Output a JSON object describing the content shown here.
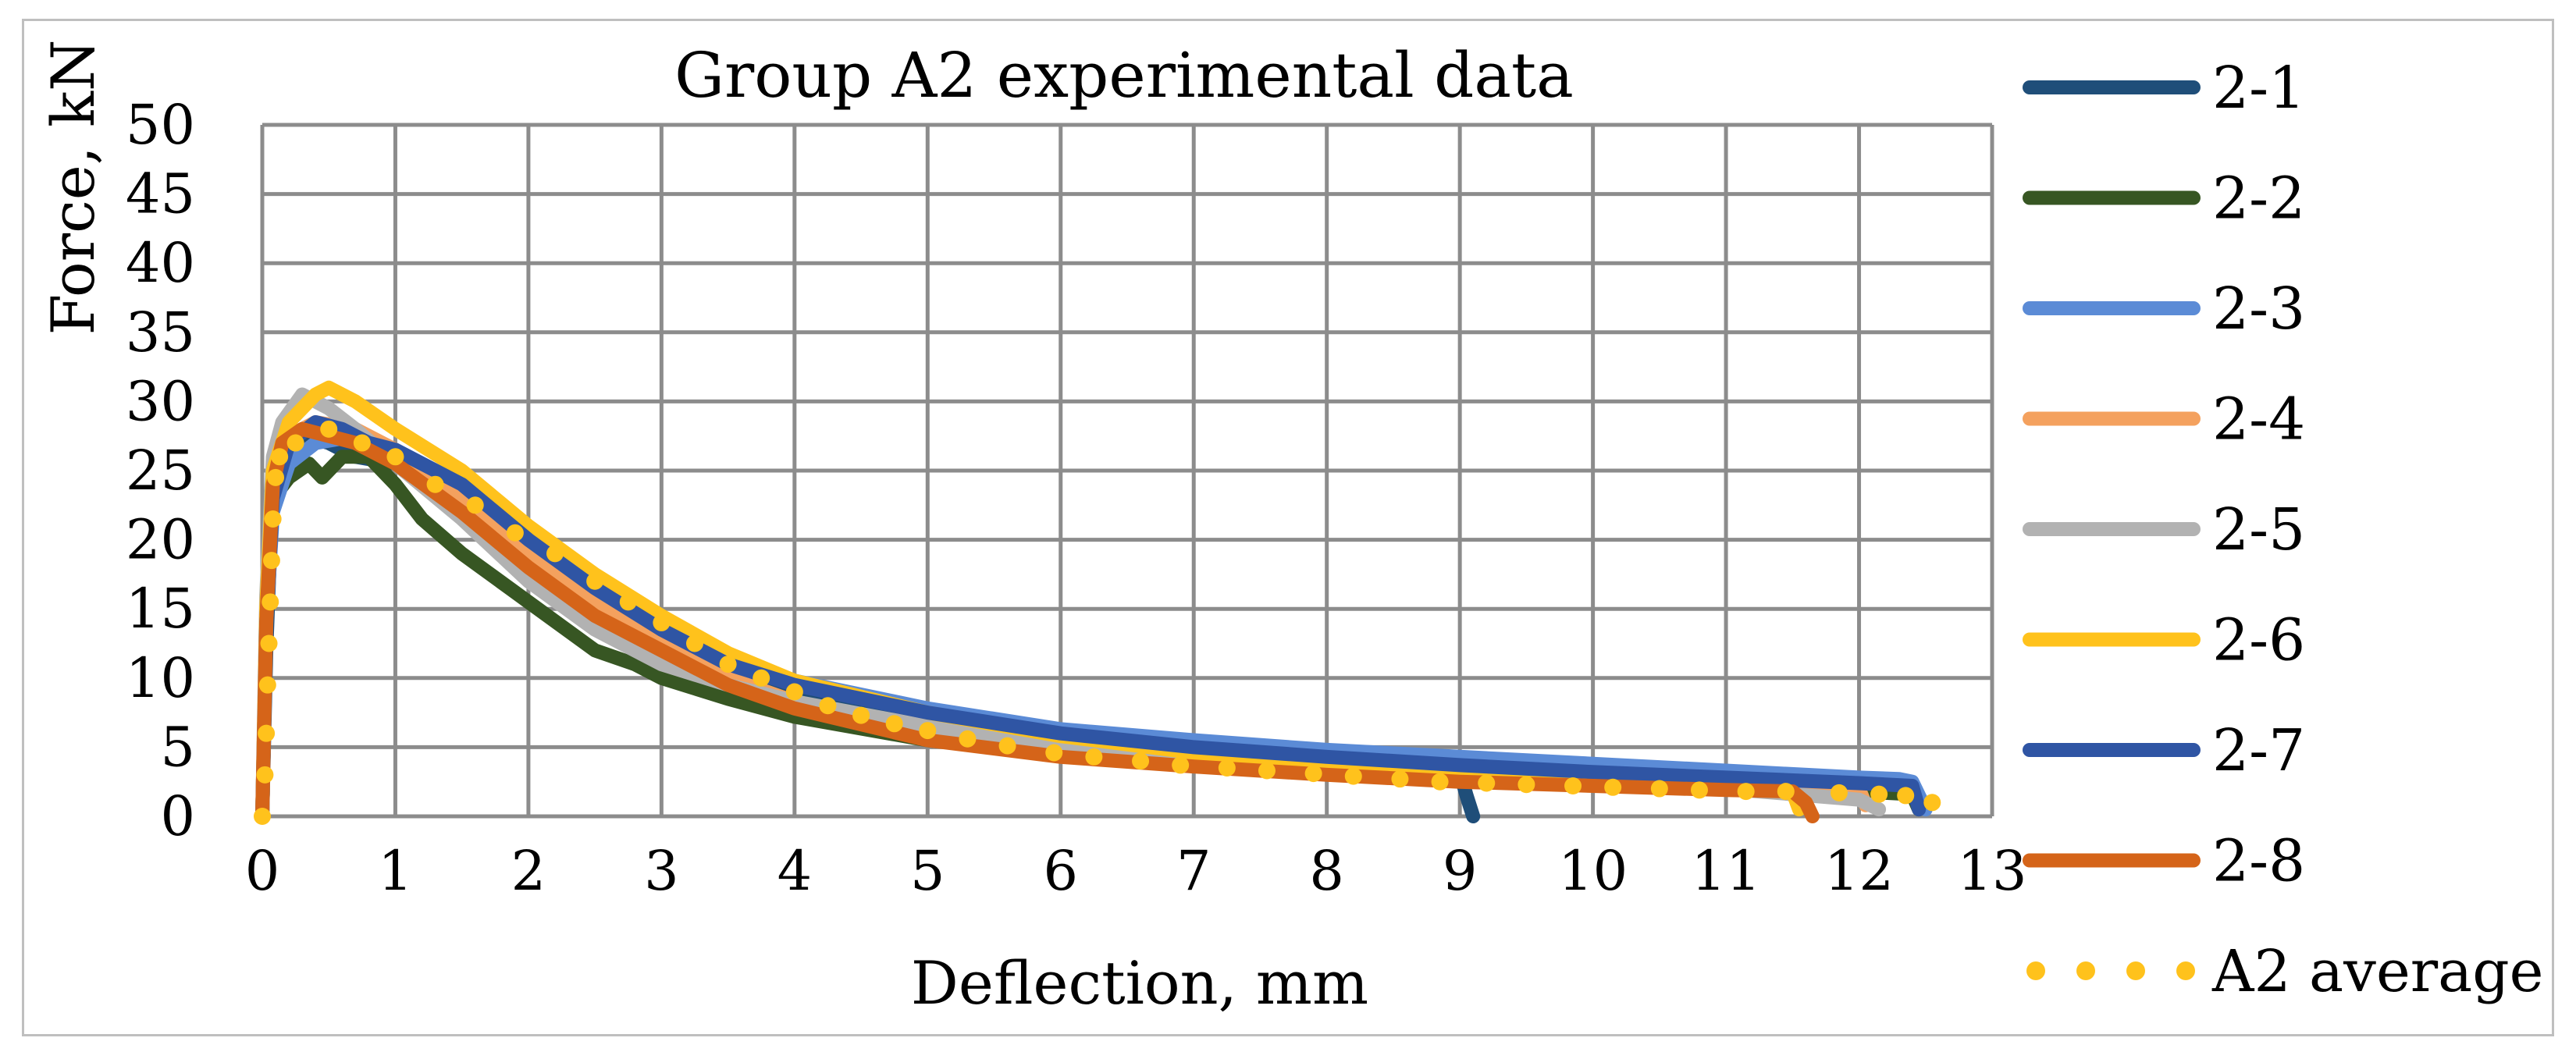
{
  "chart_data": {
    "type": "line",
    "title": "Group A2 experimental data",
    "xlabel": "Deflection, mm",
    "ylabel": "Force, kN",
    "xlim": [
      0,
      13
    ],
    "ylim": [
      0,
      50
    ],
    "xticks": [
      0,
      1,
      2,
      3,
      4,
      5,
      6,
      7,
      8,
      9,
      10,
      11,
      12,
      13
    ],
    "yticks": [
      0,
      5,
      10,
      15,
      20,
      25,
      30,
      35,
      40,
      45,
      50
    ],
    "grid": true,
    "legend_position": "right",
    "series": [
      {
        "name": "2-1",
        "color": "#1F4E79",
        "style": "solid",
        "x": [
          0,
          0.03,
          0.07,
          0.15,
          0.3,
          0.5,
          0.7,
          1.0,
          1.5,
          2.0,
          2.5,
          3.0,
          3.5,
          4.0,
          5.0,
          6.0,
          7.0,
          8.0,
          9.0,
          9.05,
          9.1
        ],
        "y": [
          0,
          12,
          22,
          26.5,
          27.5,
          27,
          26,
          25.5,
          22.5,
          18.5,
          15,
          12,
          10,
          8.8,
          6.8,
          5.3,
          4.5,
          3.8,
          3.2,
          1.5,
          0
        ]
      },
      {
        "name": "2-2",
        "color": "#375623",
        "style": "solid",
        "x": [
          0,
          0.03,
          0.08,
          0.2,
          0.35,
          0.45,
          0.6,
          0.8,
          1.0,
          1.2,
          1.5,
          2.0,
          2.5,
          2.8,
          3.0,
          3.5,
          4.0,
          5.0,
          6.0,
          7.0,
          8.0,
          9.0,
          10.0,
          11.0,
          12.0,
          12.4,
          12.45
        ],
        "y": [
          0,
          14,
          23,
          24.5,
          25.5,
          24.5,
          26,
          26,
          24,
          21.5,
          19,
          15.5,
          12,
          11,
          10,
          8.5,
          7.2,
          5.5,
          4.5,
          3.8,
          3.2,
          2.8,
          2.4,
          2.1,
          1.8,
          1.6,
          0.5
        ]
      },
      {
        "name": "2-3",
        "color": "#5B8BD6",
        "style": "solid",
        "x": [
          0,
          0.03,
          0.08,
          0.2,
          0.4,
          0.7,
          1.0,
          1.5,
          2.0,
          2.5,
          3.0,
          3.5,
          4.0,
          5.0,
          6.0,
          7.0,
          8.0,
          9.0,
          10.0,
          11.0,
          12.0,
          12.3,
          12.4,
          12.5
        ],
        "y": [
          0,
          14,
          22,
          25.5,
          27,
          27.5,
          26.5,
          24,
          20.5,
          17,
          14,
          11.5,
          9.8,
          7.8,
          6.3,
          5.5,
          4.8,
          4.3,
          3.8,
          3.3,
          2.8,
          2.7,
          2.5,
          0.5
        ]
      },
      {
        "name": "2-4",
        "color": "#F4A15E",
        "style": "solid",
        "x": [
          0,
          0.03,
          0.08,
          0.2,
          0.4,
          0.7,
          1.0,
          1.5,
          2.0,
          2.5,
          3.0,
          3.5,
          4.0,
          5.0,
          6.0,
          7.0,
          8.0,
          9.0,
          10.0,
          11.0,
          12.0,
          12.05
        ],
        "y": [
          0,
          15,
          24,
          27.5,
          28.5,
          28,
          26.5,
          23,
          19,
          15.5,
          12.5,
          10,
          8.3,
          6.3,
          5,
          4.2,
          3.6,
          3.1,
          2.7,
          2.3,
          2,
          0.8
        ]
      },
      {
        "name": "2-5",
        "color": "#B2B2B2",
        "style": "solid",
        "x": [
          0,
          0.03,
          0.08,
          0.15,
          0.3,
          0.5,
          0.7,
          1.0,
          1.5,
          2.0,
          2.5,
          3.0,
          3.5,
          4.0,
          5.0,
          6.0,
          7.0,
          8.0,
          9.0,
          10.0,
          11.0,
          12.0,
          12.15
        ],
        "y": [
          0,
          16,
          26,
          28.5,
          30.5,
          29.5,
          28,
          25.5,
          21.5,
          17,
          13.5,
          11,
          9.5,
          8.3,
          6.5,
          5.2,
          4.4,
          3.8,
          3.2,
          2.6,
          2,
          1.2,
          0.5
        ]
      },
      {
        "name": "2-6",
        "color": "#FFC21C",
        "style": "solid",
        "x": [
          0,
          0.03,
          0.08,
          0.2,
          0.4,
          0.5,
          0.7,
          1.0,
          1.5,
          2.0,
          2.5,
          3.0,
          3.5,
          4.0,
          5.0,
          6.0,
          7.0,
          8.0,
          9.0,
          10.0,
          11.0,
          11.5,
          11.55
        ],
        "y": [
          0,
          15,
          25,
          28.5,
          30.5,
          31,
          30,
          28,
          25,
          21,
          17.5,
          14.5,
          11.8,
          9.8,
          7.5,
          5.8,
          4.6,
          3.9,
          3.2,
          2.6,
          2.1,
          1.8,
          0.5
        ]
      },
      {
        "name": "2-7",
        "color": "#2F55A4",
        "style": "solid",
        "x": [
          0,
          0.03,
          0.08,
          0.2,
          0.4,
          0.6,
          0.8,
          1.0,
          1.5,
          2.0,
          2.5,
          3.0,
          3.5,
          4.0,
          5.0,
          6.0,
          7.0,
          8.0,
          9.0,
          10.0,
          11.0,
          12.0,
          12.4,
          12.45
        ],
        "y": [
          0,
          14,
          23,
          27,
          28.5,
          28,
          27,
          26.5,
          24,
          20,
          16.5,
          13.5,
          11,
          9.5,
          7.5,
          6,
          5,
          4.3,
          3.7,
          3.2,
          2.8,
          2.4,
          2.2,
          0.5
        ]
      },
      {
        "name": "2-8",
        "color": "#D56419",
        "style": "solid",
        "x": [
          0,
          0.03,
          0.08,
          0.15,
          0.3,
          0.5,
          0.7,
          1.0,
          1.5,
          2.0,
          2.5,
          3.0,
          3.5,
          4.0,
          5.0,
          6.0,
          7.0,
          8.0,
          9.0,
          10.0,
          11.0,
          11.5,
          11.6,
          11.65
        ],
        "y": [
          0,
          14,
          24,
          27,
          28,
          27.5,
          27,
          25.5,
          22,
          18,
          14.5,
          12,
          9.5,
          7.8,
          5.5,
          4.3,
          3.6,
          3,
          2.5,
          2.2,
          1.9,
          1.8,
          1,
          0
        ]
      },
      {
        "name": "A2 average",
        "color": "#FFC21C",
        "style": "dotted",
        "x": [
          0,
          0.02,
          0.03,
          0.04,
          0.05,
          0.06,
          0.07,
          0.08,
          0.1,
          0.13,
          0.25,
          0.5,
          0.75,
          1.0,
          1.3,
          1.6,
          1.9,
          2.2,
          2.5,
          2.75,
          3.0,
          3.25,
          3.5,
          3.75,
          4.0,
          4.25,
          4.5,
          4.75,
          5.0,
          5.3,
          5.6,
          5.95,
          6.25,
          6.6,
          6.9,
          7.25,
          7.55,
          7.9,
          8.2,
          8.55,
          8.85,
          9.2,
          9.5,
          9.85,
          10.15,
          10.5,
          10.8,
          11.15,
          11.45,
          11.85,
          12.15,
          12.35,
          12.55
        ],
        "y": [
          0,
          3,
          6,
          9.5,
          12.5,
          15.5,
          18.5,
          21.5,
          24.5,
          26,
          27,
          28,
          27,
          26,
          24,
          22.5,
          20.5,
          19,
          17,
          15.5,
          14,
          12.5,
          11,
          10,
          9,
          8,
          7.3,
          6.7,
          6.2,
          5.6,
          5.1,
          4.6,
          4.3,
          4,
          3.7,
          3.5,
          3.3,
          3.1,
          2.9,
          2.7,
          2.5,
          2.4,
          2.3,
          2.2,
          2.1,
          2.0,
          1.9,
          1.8,
          1.8,
          1.7,
          1.6,
          1.5,
          1.0
        ]
      }
    ]
  }
}
